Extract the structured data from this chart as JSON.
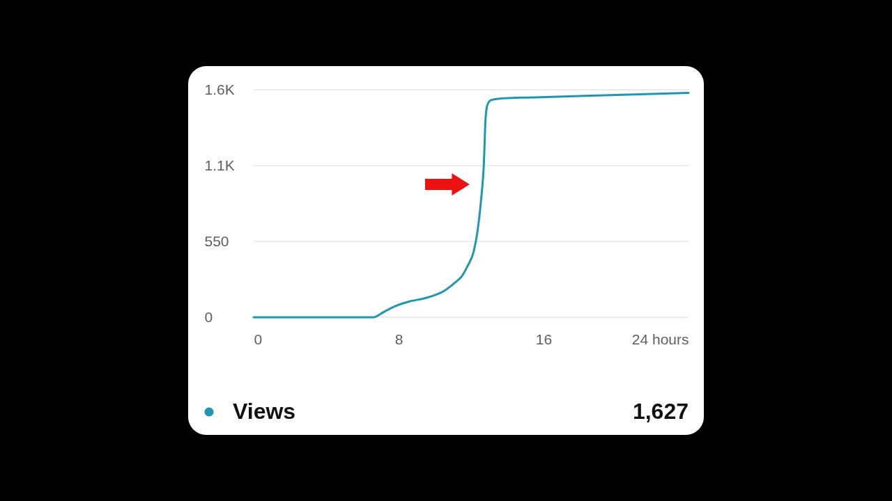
{
  "chart_data": {
    "type": "line",
    "x": [
      0,
      3,
      6.6,
      7.2,
      7.8,
      8.6,
      9.5,
      10.5,
      11.1,
      11.5,
      11.8,
      12.15,
      12.35,
      12.55,
      12.7,
      12.8,
      12.9,
      13.1,
      13.5,
      15.5,
      19.3,
      24
    ],
    "series": [
      {
        "name": "Views",
        "color": "#1f97b3",
        "values": [
          0,
          0,
          0,
          40,
          80,
          115,
          140,
          190,
          250,
          300,
          370,
          480,
          620,
          850,
          1100,
          1440,
          1540,
          1575,
          1585,
          1595,
          1610,
          1627
        ]
      }
    ],
    "xlim": [
      0,
      24
    ],
    "ylim": [
      0,
      1650
    ],
    "xticks": [
      0,
      8,
      16,
      {
        "value": 24,
        "label": "24 hours"
      }
    ],
    "yticks": [
      0,
      550,
      {
        "value": 1100,
        "label": "1.1K"
      },
      {
        "value": 1650,
        "label": "1.6K"
      }
    ],
    "grid": "y",
    "legend": "bottom",
    "line_style": "solid",
    "annotations": [
      "1,627"
    ]
  }
}
